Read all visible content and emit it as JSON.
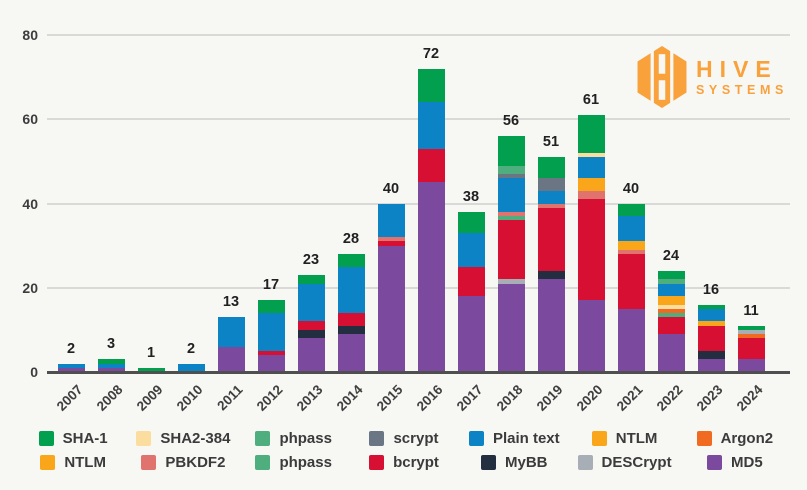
{
  "brand": {
    "line1": "HIVE",
    "line2": "SYSTEMS",
    "color": "#f9a13b"
  },
  "chart_data": {
    "type": "bar",
    "stacked": true,
    "title": "",
    "xlabel": "",
    "ylabel": "",
    "ylim": [
      0,
      80
    ],
    "yticks": [
      0,
      20,
      40,
      60,
      80
    ],
    "grid": true,
    "legend_position": "bottom",
    "series_colors": {
      "SHA-1": "#02a04e",
      "SHA2-384": "#fbdda0",
      "phpass": "#4fae7e",
      "scrypt": "#6b7684",
      "Plain text": "#0b83c5",
      "NTLM": "#faa61a",
      "Argon2": "#f16a21",
      "PBKDF2": "#e0736d",
      "bcrypt": "#d60f33",
      "MyBB": "#232e40",
      "DESCrypt": "#a8aeb6",
      "MD5": "#7b4a9f"
    },
    "legend_rows": [
      [
        "SHA-1",
        "SHA2-384",
        "phpass",
        "scrypt",
        "Plain text",
        "NTLM",
        "Argon2"
      ],
      [
        "NTLM",
        "PBKDF2",
        "phpass",
        "bcrypt",
        "MyBB",
        "DESCrypt",
        "MD5"
      ]
    ],
    "years": [
      {
        "year": "2007",
        "total": 2,
        "segments": [
          {
            "name": "MD5",
            "value": 1
          },
          {
            "name": "Plain text",
            "value": 1
          }
        ]
      },
      {
        "year": "2008",
        "total": 3,
        "segments": [
          {
            "name": "MD5",
            "value": 1
          },
          {
            "name": "Plain text",
            "value": 1
          },
          {
            "name": "SHA-1",
            "value": 1
          }
        ]
      },
      {
        "year": "2009",
        "total": 1,
        "segments": [
          {
            "name": "SHA-1",
            "value": 1
          }
        ]
      },
      {
        "year": "2010",
        "total": 2,
        "segments": [
          {
            "name": "Plain text",
            "value": 2
          }
        ]
      },
      {
        "year": "2011",
        "total": 13,
        "segments": [
          {
            "name": "MD5",
            "value": 6
          },
          {
            "name": "Plain text",
            "value": 7
          }
        ]
      },
      {
        "year": "2012",
        "total": 17,
        "segments": [
          {
            "name": "MD5",
            "value": 4
          },
          {
            "name": "bcrypt",
            "value": 1
          },
          {
            "name": "Plain text",
            "value": 9
          },
          {
            "name": "SHA-1",
            "value": 3
          }
        ]
      },
      {
        "year": "2013",
        "total": 23,
        "segments": [
          {
            "name": "MD5",
            "value": 8
          },
          {
            "name": "MyBB",
            "value": 2
          },
          {
            "name": "bcrypt",
            "value": 2
          },
          {
            "name": "Plain text",
            "value": 9
          },
          {
            "name": "SHA-1",
            "value": 2
          }
        ]
      },
      {
        "year": "2014",
        "total": 28,
        "segments": [
          {
            "name": "MD5",
            "value": 9
          },
          {
            "name": "MyBB",
            "value": 2
          },
          {
            "name": "bcrypt",
            "value": 3
          },
          {
            "name": "Plain text",
            "value": 11
          },
          {
            "name": "SHA-1",
            "value": 3
          }
        ]
      },
      {
        "year": "2015",
        "total": 40,
        "segments": [
          {
            "name": "MD5",
            "value": 30
          },
          {
            "name": "bcrypt",
            "value": 1
          },
          {
            "name": "PBKDF2",
            "value": 1
          },
          {
            "name": "Plain text",
            "value": 8
          }
        ]
      },
      {
        "year": "2016",
        "total": 72,
        "segments": [
          {
            "name": "MD5",
            "value": 45
          },
          {
            "name": "bcrypt",
            "value": 8
          },
          {
            "name": "Plain text",
            "value": 11
          },
          {
            "name": "SHA-1",
            "value": 8
          }
        ]
      },
      {
        "year": "2017",
        "total": 38,
        "segments": [
          {
            "name": "MD5",
            "value": 18
          },
          {
            "name": "bcrypt",
            "value": 7
          },
          {
            "name": "Plain text",
            "value": 8
          },
          {
            "name": "SHA-1",
            "value": 5
          }
        ]
      },
      {
        "year": "2018",
        "total": 56,
        "segments": [
          {
            "name": "MD5",
            "value": 21
          },
          {
            "name": "DESCrypt",
            "value": 1
          },
          {
            "name": "bcrypt",
            "value": 14
          },
          {
            "name": "phpass",
            "value": 1
          },
          {
            "name": "PBKDF2",
            "value": 1
          },
          {
            "name": "Plain text",
            "value": 8
          },
          {
            "name": "scrypt",
            "value": 1
          },
          {
            "name": "phpass",
            "value": 2
          },
          {
            "name": "SHA-1",
            "value": 7
          }
        ]
      },
      {
        "year": "2019",
        "total": 51,
        "segments": [
          {
            "name": "MD5",
            "value": 22
          },
          {
            "name": "MyBB",
            "value": 2
          },
          {
            "name": "bcrypt",
            "value": 15
          },
          {
            "name": "PBKDF2",
            "value": 1
          },
          {
            "name": "Plain text",
            "value": 3
          },
          {
            "name": "scrypt",
            "value": 3
          },
          {
            "name": "SHA-1",
            "value": 5
          }
        ]
      },
      {
        "year": "2020",
        "total": 61,
        "segments": [
          {
            "name": "MD5",
            "value": 17
          },
          {
            "name": "bcrypt",
            "value": 24
          },
          {
            "name": "PBKDF2",
            "value": 2
          },
          {
            "name": "NTLM",
            "value": 3
          },
          {
            "name": "Plain text",
            "value": 5
          },
          {
            "name": "SHA2-384",
            "value": 1
          },
          {
            "name": "SHA-1",
            "value": 9
          }
        ]
      },
      {
        "year": "2021",
        "total": 40,
        "segments": [
          {
            "name": "MD5",
            "value": 15
          },
          {
            "name": "bcrypt",
            "value": 13
          },
          {
            "name": "PBKDF2",
            "value": 1
          },
          {
            "name": "NTLM",
            "value": 2
          },
          {
            "name": "Plain text",
            "value": 6
          },
          {
            "name": "SHA-1",
            "value": 3
          }
        ]
      },
      {
        "year": "2022",
        "total": 24,
        "segments": [
          {
            "name": "MD5",
            "value": 9
          },
          {
            "name": "bcrypt",
            "value": 4
          },
          {
            "name": "phpass",
            "value": 1
          },
          {
            "name": "Argon2",
            "value": 1
          },
          {
            "name": "SHA2-384",
            "value": 1
          },
          {
            "name": "NTLM",
            "value": 2
          },
          {
            "name": "Plain text",
            "value": 3
          },
          {
            "name": "phpass",
            "value": 1
          },
          {
            "name": "SHA-1",
            "value": 2
          }
        ]
      },
      {
        "year": "2023",
        "total": 16,
        "segments": [
          {
            "name": "MD5",
            "value": 3
          },
          {
            "name": "MyBB",
            "value": 2
          },
          {
            "name": "bcrypt",
            "value": 6
          },
          {
            "name": "NTLM",
            "value": 1
          },
          {
            "name": "Plain text",
            "value": 3
          },
          {
            "name": "SHA-1",
            "value": 1
          }
        ]
      },
      {
        "year": "2024",
        "total": 11,
        "segments": [
          {
            "name": "MD5",
            "value": 3
          },
          {
            "name": "bcrypt",
            "value": 5
          },
          {
            "name": "Argon2",
            "value": 1
          },
          {
            "name": "DESCrypt",
            "value": 1
          },
          {
            "name": "SHA-1",
            "value": 1
          }
        ]
      }
    ]
  }
}
